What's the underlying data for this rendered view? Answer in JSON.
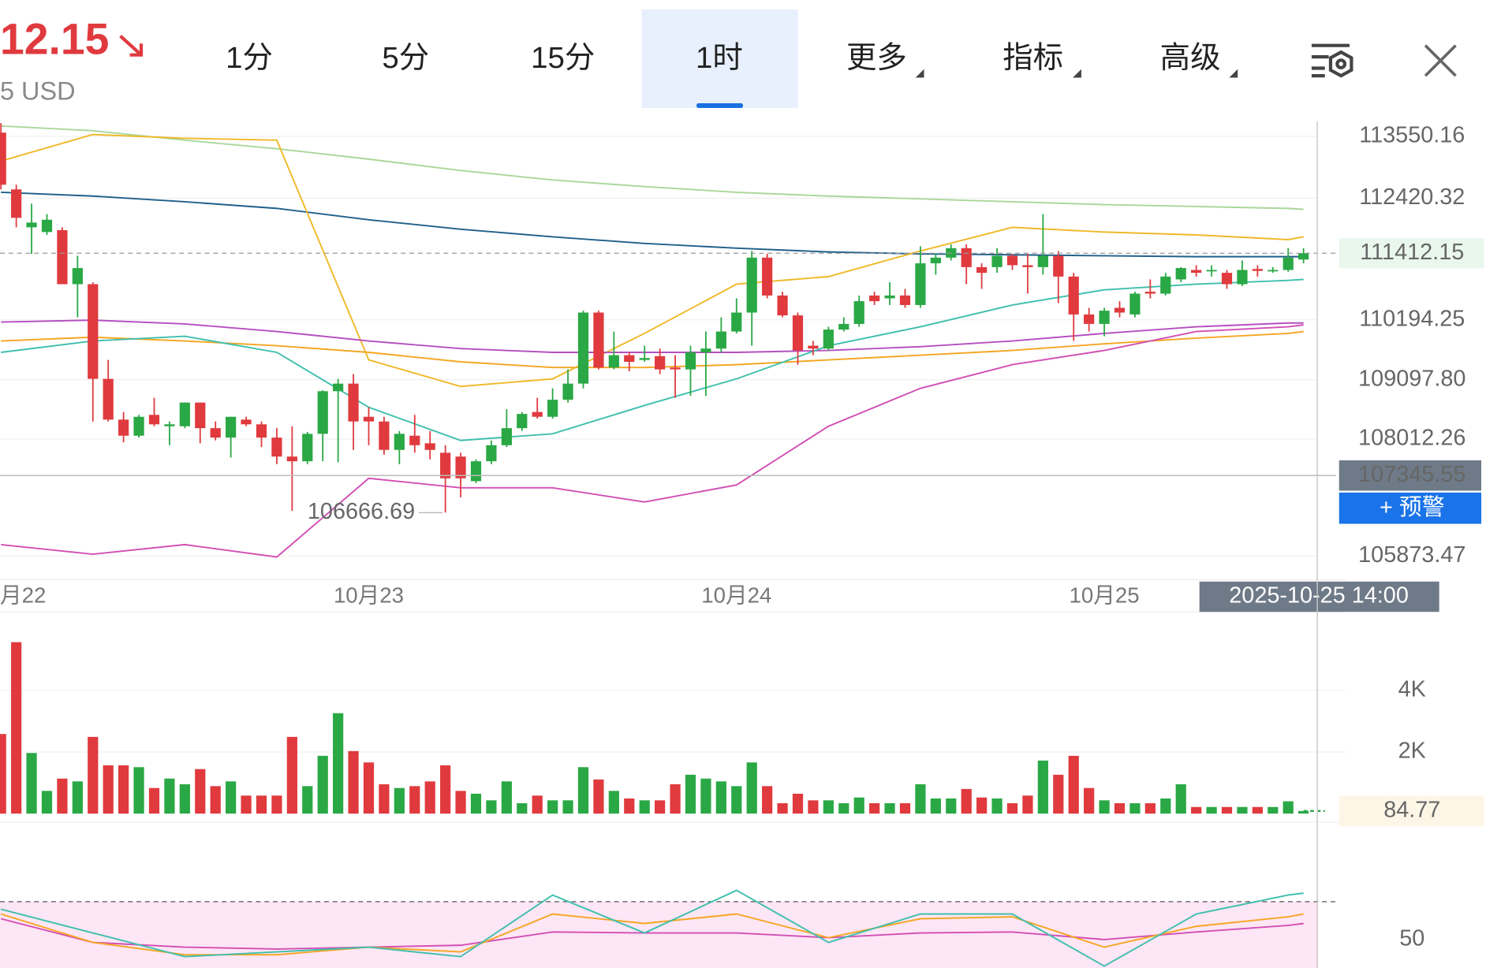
{
  "header": {
    "price": "12.15",
    "unit": "5 USD",
    "tabs": [
      "1分",
      "5分",
      "15分",
      "1时",
      "更多",
      "指标",
      "高级"
    ],
    "active_tab": 3
  },
  "alert_button": "+ 预警",
  "chart_data": [
    {
      "type": "candlestick",
      "categories": [
        "月22",
        null,
        null,
        null,
        null,
        null,
        null,
        null,
        null,
        null,
        null,
        null,
        null,
        null,
        null,
        null,
        null,
        null,
        null,
        null,
        null,
        null,
        null,
        null,
        "10月23",
        null,
        null,
        null,
        null,
        null,
        null,
        null,
        null,
        null,
        null,
        null,
        null,
        null,
        null,
        null,
        null,
        null,
        null,
        null,
        null,
        null,
        null,
        null,
        "10月24",
        null,
        null,
        null,
        null,
        null,
        null,
        null,
        null,
        null,
        null,
        null,
        null,
        null,
        null,
        null,
        null,
        null,
        null,
        null,
        null,
        null,
        null,
        null,
        "10月25",
        null,
        null,
        null,
        null,
        null,
        null,
        null,
        null,
        null,
        null,
        null,
        null,
        null
      ],
      "open": [
        113619,
        112580,
        111886,
        111800,
        111834,
        110846,
        110846,
        109114,
        108368,
        108074,
        108455,
        108247,
        108247,
        108680,
        108212,
        108039,
        108368,
        108282,
        108039,
        107692,
        107606,
        108108,
        108888,
        109027,
        108420,
        108334,
        107814,
        108074,
        107935,
        107762,
        107692,
        107242,
        107606,
        107900,
        108212,
        108507,
        108420,
        108732,
        109027,
        110327,
        109321,
        109547,
        109460,
        109529,
        109321,
        109287,
        109599,
        109668,
        109980,
        110327,
        111332,
        110639,
        110275,
        109720,
        109668,
        110015,
        110119,
        110639,
        110587,
        110639,
        110465,
        111228,
        111332,
        111505,
        111158,
        111158,
        111366,
        111193,
        111158,
        111366,
        110985,
        110292,
        110119,
        110413,
        110292,
        110708,
        110673,
        110933,
        111106,
        111089,
        111054,
        110846,
        111124,
        111089,
        111106,
        111297
      ],
      "high": [
        113793,
        112666,
        112320,
        112129,
        111886,
        111366,
        110881,
        109460,
        108507,
        108455,
        108767,
        108334,
        108680,
        108680,
        108334,
        108420,
        108420,
        108334,
        108212,
        108247,
        108143,
        108906,
        109114,
        109200,
        108594,
        108420,
        108160,
        108455,
        108160,
        107900,
        107762,
        107640,
        107987,
        108559,
        108507,
        108767,
        108940,
        109287,
        110361,
        110361,
        109980,
        109599,
        109720,
        109668,
        109547,
        109720,
        109980,
        110240,
        110587,
        111453,
        111401,
        110708,
        110327,
        109807,
        110067,
        110240,
        110639,
        110708,
        110881,
        110760,
        111540,
        111401,
        111574,
        111574,
        111228,
        111505,
        111401,
        111401,
        112129,
        111453,
        111054,
        110413,
        110413,
        110535,
        110708,
        110933,
        111054,
        111158,
        111193,
        111193,
        111106,
        111280,
        111193,
        111158,
        111505,
        111505
      ],
      "low": [
        112580,
        111886,
        111401,
        111748,
        110846,
        110240,
        108334,
        108334,
        107952,
        108039,
        108247,
        107900,
        108212,
        107935,
        107987,
        107675,
        108247,
        107866,
        107554,
        106700,
        107554,
        107606,
        107588,
        107814,
        107900,
        107727,
        107554,
        107762,
        107640,
        106666.69,
        106947,
        107207,
        107554,
        107866,
        108160,
        108386,
        108386,
        108680,
        108940,
        109287,
        109287,
        109252,
        109425,
        109200,
        108767,
        108802,
        108802,
        109599,
        109945,
        109720,
        110587,
        110240,
        109373,
        109547,
        109633,
        109980,
        110067,
        110465,
        110465,
        110413,
        110413,
        111020,
        111280,
        110846,
        110760,
        111054,
        111106,
        110673,
        111020,
        110500,
        109807,
        109980,
        109893,
        110240,
        110240,
        110587,
        110639,
        110881,
        110985,
        110985,
        110760,
        110812,
        110985,
        111054,
        111072,
        111228
      ],
      "close": [
        112666,
        112060,
        111973,
        112025,
        110846,
        111141,
        109114,
        108368,
        108074,
        108420,
        108282,
        108282,
        108680,
        108212,
        108039,
        108420,
        108282,
        108039,
        107692,
        107606,
        108108,
        108888,
        109027,
        108334,
        108334,
        107814,
        108108,
        107900,
        107814,
        107294,
        107294,
        107606,
        107900,
        108212,
        108472,
        108420,
        108732,
        109027,
        110327,
        109321,
        109547,
        109425,
        109495,
        109287,
        109287,
        109599,
        109668,
        109980,
        110327,
        111332,
        110639,
        110275,
        109633,
        109668,
        110015,
        110119,
        110535,
        110535,
        110639,
        110465,
        111228,
        111332,
        111505,
        111158,
        111054,
        111366,
        111193,
        111158,
        111366,
        110985,
        110292,
        110119,
        110361,
        110327,
        110673,
        110673,
        110985,
        111141,
        111054,
        111106,
        110846,
        111106,
        111089,
        111106,
        111332,
        111412.15
      ],
      "up_color": "#2aa845",
      "down_color": "#e03a3e",
      "ylim": [
        105440,
        113827
      ],
      "yticks": [
        113550.16,
        112420.32,
        110194.25,
        {
          "value": 109097.8,
          "label": "109097.80"
        },
        108012.26,
        105873.47
      ],
      "grid": true,
      "crosshair": {
        "value": 107345.55,
        "label": "2025-10-25 14:00"
      },
      "line_x": [
        0,
        6,
        12,
        18,
        24,
        30,
        36,
        42,
        48,
        54,
        60,
        66,
        72,
        78,
        84,
        85
      ],
      "lines": [
        {
          "color": "#a9d79b",
          "values": [
            113741,
            113654,
            113481,
            113325,
            113134,
            112926,
            112753,
            112631,
            112527,
            112458,
            112406,
            112354,
            112302,
            112268,
            112233,
            112216
          ]
        },
        {
          "color": "#1f5f8b",
          "values": [
            112527,
            112458,
            112354,
            112233,
            112025,
            111852,
            111713,
            111592,
            111505,
            111436,
            111401,
            111384,
            111366,
            111349,
            111349,
            111349
          ]
        },
        {
          "color": "#f0b92a",
          "values": [
            113099,
            113585,
            113515,
            113481,
            109460,
            108975,
            109114,
            109945,
            110846,
            110985,
            111453,
            111886,
            111800,
            111748,
            111661,
            111713
          ]
        },
        {
          "color": "#b44fc0",
          "values": [
            110153,
            110188,
            110119,
            109980,
            109807,
            109668,
            109599,
            109599,
            109599,
            109633,
            109703,
            109807,
            109945,
            110067,
            110136,
            110136
          ]
        },
        {
          "color": "#f5a623",
          "values": [
            109807,
            109876,
            109807,
            109720,
            109599,
            109425,
            109321,
            109321,
            109373,
            109460,
            109547,
            109633,
            109755,
            109859,
            109945,
            109980
          ]
        },
        {
          "color": "#3fbfad",
          "values": [
            109599,
            109807,
            109893,
            109599,
            108594,
            107987,
            108108,
            108628,
            109114,
            109720,
            110067,
            110465,
            110743,
            110846,
            110916,
            110933
          ]
        },
        {
          "color": "#d24fb4",
          "values": [
            106081,
            105907,
            106081,
            105855,
            107294,
            107121,
            107121,
            106861,
            107173,
            108247,
            108940,
            109373,
            109633,
            109980,
            110067,
            110101
          ]
        }
      ]
    },
    {
      "type": "bar",
      "values": [
        2585,
        5569,
        1969,
        738,
        1138,
        1046,
        2492,
        1569,
        1569,
        1508,
        831,
        1138,
        954,
        1446,
        892,
        1046,
        585,
        585,
        585,
        2492,
        892,
        1877,
        3262,
        2031,
        1662,
        954,
        831,
        892,
        1046,
        1569,
        738,
        646,
        431,
        1046,
        338,
        585,
        431,
        431,
        1508,
        1108,
        738,
        492,
        431,
        431,
        954,
        1262,
        1138,
        1046,
        892,
        1662,
        892,
        338,
        646,
        431,
        431,
        338,
        523,
        338,
        338,
        338,
        954,
        492,
        492,
        800,
        523,
        492,
        338,
        585,
        1723,
        1262,
        1877,
        831,
        431,
        338,
        338,
        338,
        492,
        954,
        215,
        215,
        215,
        215,
        215,
        215,
        400,
        84.77
      ],
      "up_color": "#2aa845",
      "down_color": "#e03a3e",
      "last_color": "#e8a33a",
      "ylim": [
        0,
        6430
      ],
      "yticks": [
        {
          "value": 4000,
          "label": "4K"
        },
        {
          "value": 2000,
          "label": "2K"
        }
      ],
      "grid": true
    },
    {
      "type": "line",
      "x": [
        0,
        6,
        12,
        18,
        24,
        30,
        36,
        42,
        48,
        54,
        60,
        66,
        72,
        78,
        84,
        85
      ],
      "series": [
        {
          "color": "#d24fb4",
          "values": [
            61,
            48.5,
            46,
            45,
            46,
            47,
            54,
            53.5,
            53.5,
            51,
            53.5,
            54,
            50,
            54,
            57.5,
            58.5
          ]
        },
        {
          "color": "#f5a623",
          "values": [
            63.5,
            48.5,
            42,
            42,
            46,
            43.5,
            63.5,
            58.5,
            63.5,
            51,
            61,
            62,
            46,
            57,
            62,
            63.5
          ]
        },
        {
          "color": "#3fbfad",
          "values": [
            66,
            53.5,
            41,
            43.5,
            46,
            41,
            73.5,
            53.5,
            76,
            48.5,
            63.5,
            63.5,
            36,
            63.5,
            73.5,
            74.5
          ]
        }
      ],
      "ylim": [
        35,
        98.5
      ],
      "yticks": [
        50
      ],
      "reference": 70,
      "band_color": "#fde6f5"
    }
  ]
}
